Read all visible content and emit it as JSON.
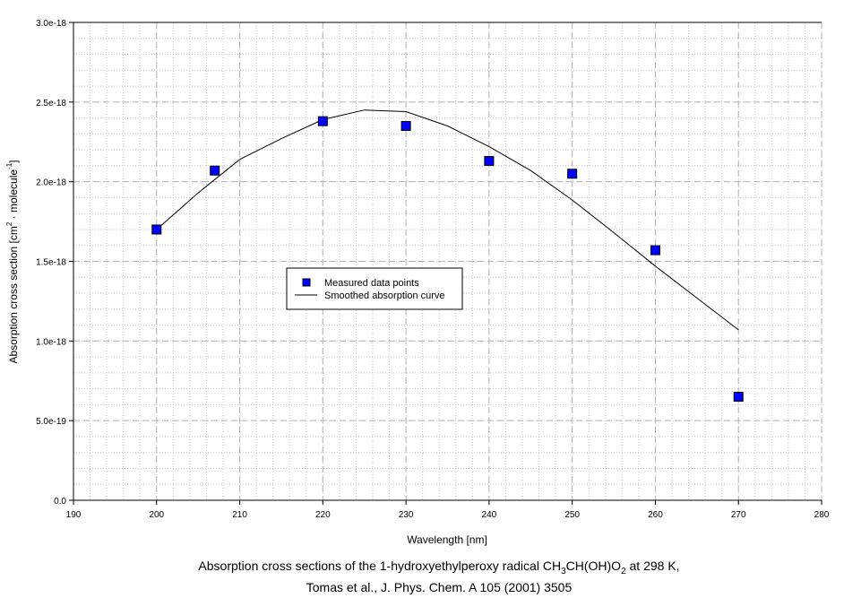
{
  "chart_data": {
    "type": "scatter",
    "title_line1_parts": [
      "Absorption cross sections of the 1-hydroxyethylperoxy radical CH",
      "3",
      "CH(OH)O",
      "2",
      " at 298 K,"
    ],
    "title_line2": "Tomas et al., J. Phys. Chem. A 105 (2001) 3505",
    "xlabel": "Wavelength [nm]",
    "ylabel_parts": [
      "Absorption cross section [cm",
      "2",
      " · molecule",
      "-1",
      "]"
    ],
    "xlim": [
      190,
      280
    ],
    "ylim": [
      0,
      3e-18
    ],
    "x_ticks": [
      190,
      200,
      210,
      220,
      230,
      240,
      250,
      260,
      270,
      280
    ],
    "x_tick_labels": [
      "190",
      "200",
      "210",
      "220",
      "230",
      "240",
      "250",
      "260",
      "270",
      "280"
    ],
    "y_ticks": [
      0,
      5e-19,
      1e-18,
      1.5e-18,
      2e-18,
      2.5e-18,
      3e-18
    ],
    "y_tick_labels": [
      "0.0",
      "5.0e-19",
      "1.0e-18",
      "1.5e-18",
      "2.0e-18",
      "2.5e-18",
      "3.0e-18"
    ],
    "x_minor_step": 2,
    "y_minor_step": 1e-19,
    "grid": true,
    "legend_position": "center-left",
    "series": [
      {
        "name": "Measured data points",
        "kind": "markers",
        "color": "#0000ff",
        "x": [
          200,
          207,
          220,
          230,
          240,
          250,
          260,
          270
        ],
        "y": [
          1.7e-18,
          2.07e-18,
          2.38e-18,
          2.35e-18,
          2.13e-18,
          2.05e-18,
          1.57e-18,
          6.5e-19
        ]
      },
      {
        "name": "Smoothed absorption curve",
        "kind": "line",
        "color": "#000000",
        "x": [
          200,
          205,
          210,
          215,
          220,
          225,
          230,
          235,
          240,
          245,
          250,
          255,
          260,
          265,
          270
        ],
        "y": [
          1.7e-18,
          1.93e-18,
          2.14e-18,
          2.27e-18,
          2.39e-18,
          2.45e-18,
          2.44e-18,
          2.35e-18,
          2.22e-18,
          2.07e-18,
          1.885e-18,
          1.68e-18,
          1.47e-18,
          1.27e-18,
          1.07e-18
        ]
      }
    ]
  }
}
